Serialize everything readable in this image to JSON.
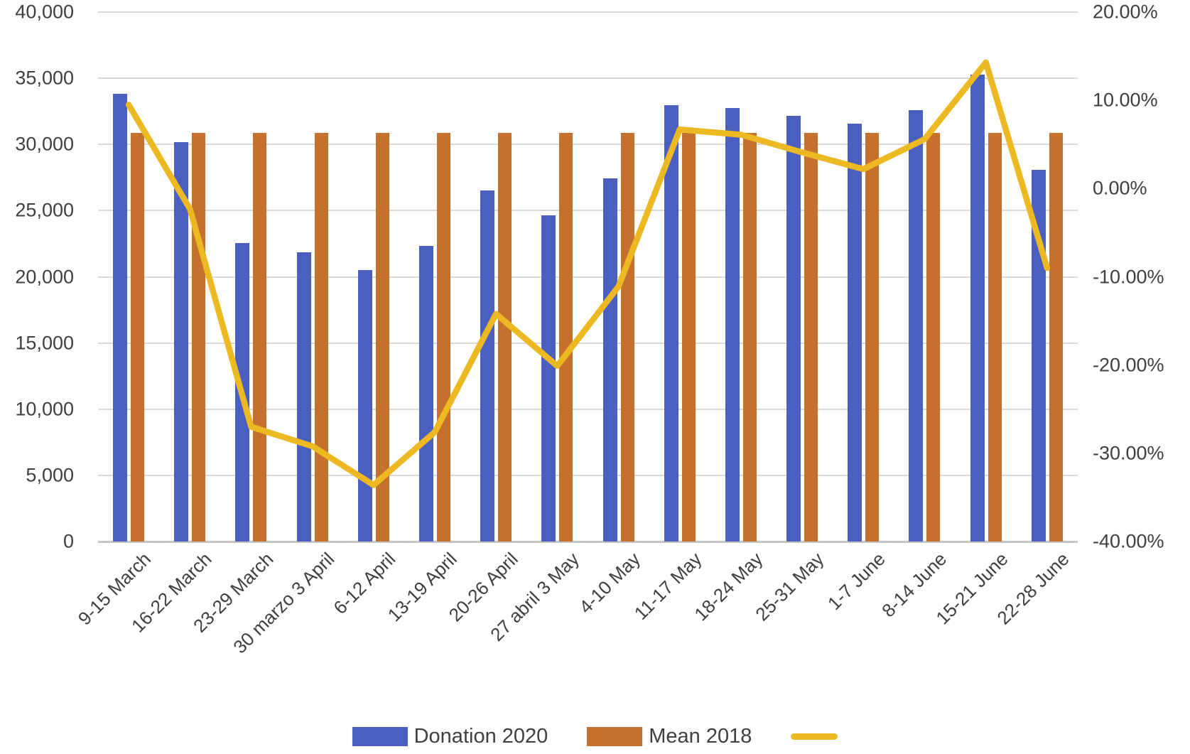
{
  "chart_data": {
    "type": "bar",
    "combo": "clustered-bar-with-line",
    "title": "",
    "xlabel": "",
    "ylabel": "",
    "grid": true,
    "legend_position": "bottom",
    "categories": [
      "9-15 March",
      "16-22 March",
      "23-29 March",
      "30 marzo 3 April",
      "6-12 April",
      "13-19 April",
      "20-26 April",
      "27 abril 3 May",
      "4-10 May",
      "11-17 May",
      "18-24 May",
      "25-31 May",
      "1-7 June",
      "8-14 June",
      "15-21 June",
      "22-28 June"
    ],
    "series": [
      {
        "name": "Donation 2020",
        "type": "bar",
        "axis": "left",
        "color": "#4a5fc0",
        "values": [
          33800,
          30150,
          22550,
          21850,
          20500,
          22350,
          26500,
          24650,
          27450,
          32950,
          32750,
          32150,
          31550,
          32600,
          35280,
          28080
        ]
      },
      {
        "name": "Mean 2018",
        "type": "bar",
        "axis": "left",
        "color": "#c5702d",
        "values": [
          30870,
          30870,
          30870,
          30870,
          30870,
          30870,
          30870,
          30870,
          30870,
          30870,
          30870,
          30870,
          30870,
          30870,
          30870,
          30870
        ]
      },
      {
        "name": "",
        "type": "line",
        "axis": "right",
        "color": "#ecb923",
        "values": [
          9.5,
          -2.3,
          -27.0,
          -29.2,
          -33.6,
          -27.6,
          -14.2,
          -20.1,
          -11.1,
          6.7,
          6.1,
          4.1,
          2.2,
          5.6,
          14.3,
          -9.0
        ]
      }
    ],
    "left_axis": {
      "min": 0,
      "max": 40000,
      "step": 5000,
      "tick_labels": [
        "0",
        "5,000",
        "10,000",
        "15,000",
        "20,000",
        "25,000",
        "30,000",
        "35,000",
        "40,000"
      ],
      "tick_values": [
        0,
        5000,
        10000,
        15000,
        20000,
        25000,
        30000,
        35000,
        40000
      ]
    },
    "right_axis": {
      "min": -40,
      "max": 20,
      "step": 10,
      "tick_labels": [
        "20.00%",
        "10.00%",
        "0.00%",
        "-10.00%",
        "-20.00%",
        "-30.00%",
        "-40.00%"
      ],
      "tick_values": [
        20,
        10,
        0,
        -10,
        -20,
        -30,
        -40
      ]
    },
    "legend": [
      {
        "label": "Donation 2020",
        "swatch": "bar",
        "color": "#4a5fc0"
      },
      {
        "label": "Mean 2018",
        "swatch": "bar",
        "color": "#c5702d"
      },
      {
        "label": "",
        "swatch": "line",
        "color": "#ecb923"
      }
    ],
    "colors": {
      "gridline": "#d9d9d9",
      "axis_line": "#c6c6c6",
      "text": "#3f3f3f",
      "background": "#ffffff"
    }
  }
}
